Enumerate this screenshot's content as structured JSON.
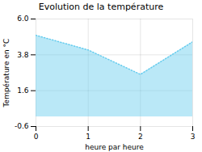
{
  "chart_data": {
    "type": "area",
    "title": "Evolution de la température",
    "xlabel": "heure par heure",
    "ylabel": "Température en °C",
    "x": [
      0,
      1,
      2,
      3
    ],
    "values": [
      5.0,
      4.1,
      2.6,
      4.6
    ],
    "color": "#66ccee",
    "line_style": "dotted",
    "xlim": [
      0,
      3
    ],
    "ylim": [
      -0.6,
      6.0
    ],
    "xticks": [
      0,
      1,
      2,
      3
    ],
    "yticks": [
      -0.6,
      1.6,
      3.8,
      {
        "value": 6.0,
        "label": "6.0"
      }
    ],
    "grid": true
  }
}
